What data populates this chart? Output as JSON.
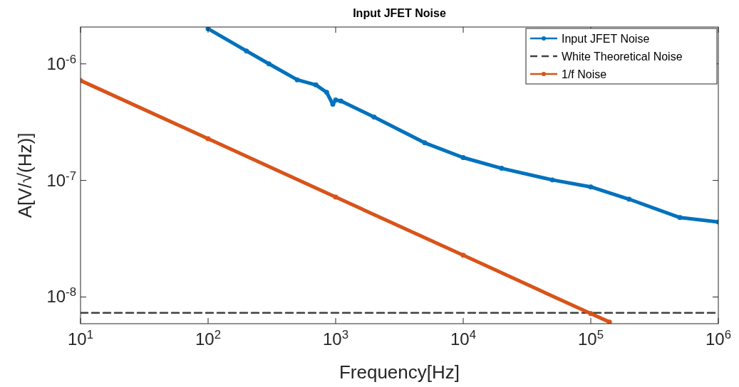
{
  "chart_data": {
    "type": "line",
    "title": "Input JFET Noise",
    "xlabel": "Frequency[Hz]",
    "ylabel": "A[V/√(Hz)]",
    "log": "xy",
    "xlim": [
      10,
      1000000
    ],
    "ylim": [
      5.9e-09,
      2.07e-06
    ],
    "xticks": [
      {
        "value": 10,
        "label": "10$^{1}$"
      },
      {
        "value": 100,
        "label": "10$^{2}$"
      },
      {
        "value": 1000,
        "label": "10$^{3}$"
      },
      {
        "value": 10000,
        "label": "10$^{4}$"
      },
      {
        "value": 100000,
        "label": "10$^{5}$"
      },
      {
        "value": 1000000,
        "label": "10$^{6}$"
      }
    ],
    "yticks": [
      {
        "value": 1e-08,
        "label": "10$^{-8}$"
      },
      {
        "value": 1e-07,
        "label": "10$^{-7}$"
      },
      {
        "value": 1e-06,
        "label": "10$^{-6}$"
      }
    ],
    "grid": false,
    "legend": "top right",
    "series": [
      {
        "name": "Input JFET Noise",
        "color": "#0072bd",
        "marker": "circle",
        "line_style": "solid",
        "x": [
          100,
          200,
          300,
          500,
          700,
          850,
          950,
          1000,
          1100,
          2000,
          5000,
          10000,
          20000,
          50000,
          100000,
          200000,
          500000,
          1000000
        ],
        "values": [
          2e-06,
          1.29e-06,
          1e-06,
          7.3e-07,
          6.6e-07,
          5.7e-07,
          4.5e-07,
          4.9e-07,
          4.8e-07,
          3.5e-07,
          2.1e-07,
          1.57e-07,
          1.27e-07,
          1.01e-07,
          8.8e-08,
          6.9e-08,
          4.8e-08,
          4.4e-08
        ]
      },
      {
        "name": "White Theoretical Noise",
        "color": "#404040",
        "marker": "none",
        "line_style": "dashed",
        "x": [
          10,
          1000000
        ],
        "values": [
          7.3e-09,
          7.3e-09
        ]
      },
      {
        "name": "1/f Noise",
        "color": "#d95319",
        "marker": "circle",
        "line_style": "solid",
        "x": [
          10,
          100,
          1000,
          10000,
          100000,
          140000
        ],
        "values": [
          7.2e-07,
          2.28e-07,
          7.2e-08,
          2.28e-08,
          7.2e-09,
          6.1e-09
        ]
      }
    ]
  }
}
